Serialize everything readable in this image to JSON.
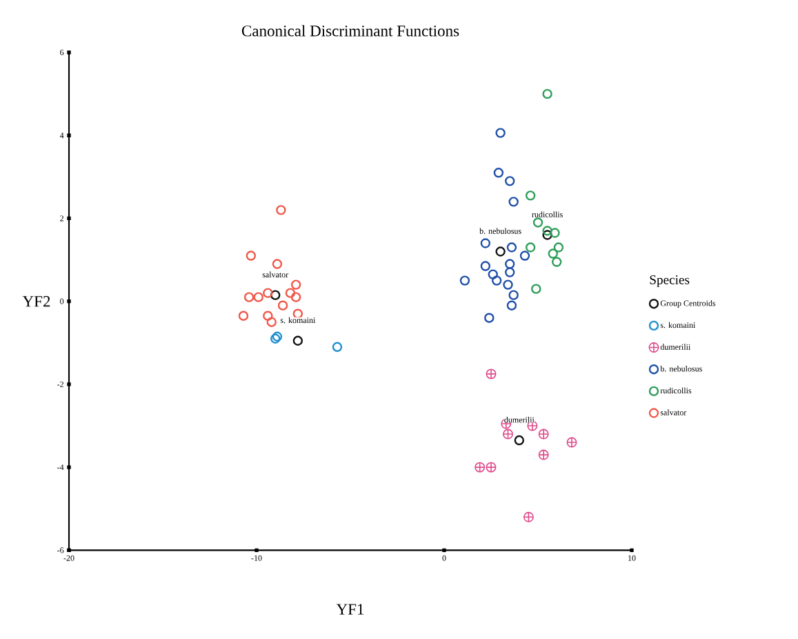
{
  "chart_data": {
    "type": "scatter",
    "title": "Canonical Discriminant Functions",
    "xlabel": "YF1",
    "ylabel": "YF2",
    "legend_title": "Species",
    "legend": "right",
    "grid": false,
    "xlim": [
      -20,
      10
    ],
    "ylim": [
      -6,
      6
    ],
    "xticks": [
      -20,
      -10,
      0,
      10
    ],
    "yticks": [
      -6,
      -4,
      -2,
      0,
      2,
      4,
      6
    ],
    "series": [
      {
        "name": "Group Centroids",
        "color": "#111111",
        "marker": "circle",
        "x": [
          -9.0,
          -7.8,
          4.0,
          3.0,
          5.5
        ],
        "values": [
          0.15,
          -0.95,
          -3.35,
          1.2,
          1.6
        ]
      },
      {
        "name": "s. komaini",
        "color": "#1e8fd0",
        "marker": "circle",
        "x": [
          -9.0,
          -8.9,
          -5.7
        ],
        "values": [
          -0.9,
          -0.85,
          -1.1
        ]
      },
      {
        "name": "dumerilii",
        "color": "#e0488a",
        "marker": "cross",
        "x": [
          2.5,
          3.3,
          4.7,
          3.4,
          5.3,
          6.8,
          5.3,
          1.9,
          2.5,
          4.5
        ],
        "values": [
          -1.75,
          -2.95,
          -3.0,
          -3.2,
          -3.2,
          -3.4,
          -3.7,
          -4.0,
          -4.0,
          -5.2
        ]
      },
      {
        "name": "b. nebulosus",
        "color": "#1f4fa8",
        "marker": "circle",
        "x": [
          3.0,
          2.9,
          3.5,
          3.7,
          2.2,
          3.6,
          4.3,
          2.2,
          2.6,
          2.8,
          3.5,
          3.5,
          3.4,
          1.1,
          3.7,
          3.6,
          2.4
        ],
        "values": [
          4.06,
          3.1,
          2.9,
          2.4,
          1.4,
          1.3,
          1.1,
          0.85,
          0.65,
          0.5,
          0.9,
          0.7,
          0.4,
          0.5,
          0.15,
          -0.1,
          -0.4
        ]
      },
      {
        "name": "rudicollis",
        "color": "#2e9e5a",
        "marker": "circle",
        "x": [
          5.5,
          4.6,
          5.0,
          5.5,
          5.9,
          4.6,
          6.1,
          5.8,
          6.0,
          4.9
        ],
        "values": [
          5.0,
          2.55,
          1.9,
          1.7,
          1.65,
          1.3,
          1.3,
          1.15,
          0.95,
          0.3
        ]
      },
      {
        "name": "salvator",
        "color": "#f0584a",
        "marker": "circle",
        "x": [
          -8.7,
          -10.3,
          -8.9,
          -7.9,
          -10.4,
          -9.9,
          -9.4,
          -10.7,
          -7.9,
          -8.6,
          -7.8,
          -9.4,
          -9.2,
          -8.2
        ],
        "values": [
          2.2,
          1.1,
          0.9,
          0.4,
          0.1,
          0.1,
          0.2,
          -0.35,
          0.1,
          -0.1,
          -0.3,
          -0.35,
          -0.5,
          0.2
        ]
      }
    ],
    "annotations": [
      {
        "text": "salvator",
        "x": -9.0,
        "y": 0.15
      },
      {
        "text": "s. komaini",
        "x": -7.8,
        "y": -0.95
      },
      {
        "text": "dumerilii",
        "x": 4.0,
        "y": -3.35
      },
      {
        "text": "b. nebulosus",
        "x": 3.0,
        "y": 1.2
      },
      {
        "text": "rudicollis",
        "x": 5.5,
        "y": 1.6
      }
    ]
  }
}
